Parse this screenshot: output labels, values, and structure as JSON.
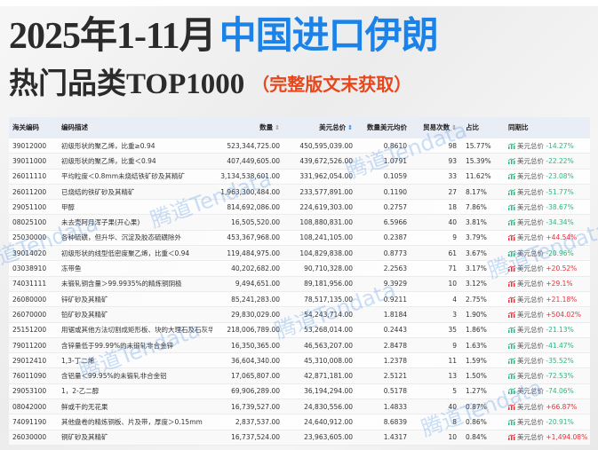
{
  "title": {
    "line1_prefix": "2025年1-11月",
    "line1_highlight": "中国进口伊朗",
    "line2": "热门品类TOP1000",
    "line2_note": "（完整版文末获取）"
  },
  "colors": {
    "accent": "#1a82e8",
    "note": "#e8471c",
    "down": "#2fb67c",
    "up": "#e5323a"
  },
  "watermark": "腾道Tendata",
  "table": {
    "headers": {
      "code": "海关编码",
      "desc": "编码描述",
      "qty": "数量",
      "usd": "美元总价",
      "unit": "数量美元均价",
      "count": "贸易次数",
      "share": "占比",
      "yoy": "同期比"
    },
    "yoy_label": "美元总价",
    "rows": [
      {
        "code": "39012000",
        "desc": "初级形状的聚乙烯，比重≥0.94",
        "qty": "523,344,725.00",
        "usd": "450,595,039.00",
        "unit": "0.8610",
        "count": "98",
        "share": "15.77%",
        "yoy": "-14.27%",
        "dir": "down"
      },
      {
        "code": "39011000",
        "desc": "初级形状的聚乙烯，比重＜0.94",
        "qty": "407,449,605.00",
        "usd": "439,672,526.00",
        "unit": "1.0791",
        "count": "93",
        "share": "15.39%",
        "yoy": "-22.22%",
        "dir": "down"
      },
      {
        "code": "26011110",
        "desc": "平均粒度＜0.8mm未烧结铁矿砂及其精矿",
        "qty": "3,134,538,601.00",
        "usd": "331,962,054.00",
        "unit": "0.1059",
        "count": "33",
        "share": "11.62%",
        "yoy": "-23.08%",
        "dir": "down"
      },
      {
        "code": "26011200",
        "desc": "已烧结的铁矿砂及其精矿",
        "qty": "1,963,300,484.00",
        "usd": "233,577,891.00",
        "unit": "0.1190",
        "count": "27",
        "share": "8.17%",
        "yoy": "-51.77%",
        "dir": "down"
      },
      {
        "code": "29051100",
        "desc": "甲醇",
        "qty": "814,692,086.00",
        "usd": "224,619,303.00",
        "unit": "0.2757",
        "count": "18",
        "share": "7.86%",
        "yoy": "-38.67%",
        "dir": "down"
      },
      {
        "code": "08025100",
        "desc": "未去壳阿月浑子果(开心果)",
        "qty": "16,505,520.00",
        "usd": "108,880,831.00",
        "unit": "6.5966",
        "count": "40",
        "share": "3.81%",
        "yoy": "-34.34%",
        "dir": "down"
      },
      {
        "code": "25030000",
        "desc": "各种硫磺，但升华、沉淀及胶态硫磺除外",
        "qty": "453,367,968.00",
        "usd": "108,241,105.00",
        "unit": "0.2387",
        "count": "9",
        "share": "3.79%",
        "yoy": "+44.54%",
        "dir": "up"
      },
      {
        "code": "39014020",
        "desc": "初级形状的线型低密度聚乙烯，比重＜0.94",
        "qty": "119,484,975.00",
        "usd": "104,829,838.00",
        "unit": "0.8773",
        "count": "61",
        "share": "3.67%",
        "yoy": "-20.96%",
        "dir": "down"
      },
      {
        "code": "03038910",
        "desc": "冻带鱼",
        "qty": "40,202,682.00",
        "usd": "90,710,328.00",
        "unit": "2.2563",
        "count": "71",
        "share": "3.17%",
        "yoy": "+20.52%",
        "dir": "up"
      },
      {
        "code": "74031111",
        "desc": "未锻轧铜含量＞99.9935%的精炼铜阴极",
        "qty": "9,494,651.00",
        "usd": "89,181,956.00",
        "unit": "9.3929",
        "count": "10",
        "share": "3.12%",
        "yoy": "+29.1%",
        "dir": "up"
      },
      {
        "code": "26080000",
        "desc": "锌矿砂及其精矿",
        "qty": "85,241,283.00",
        "usd": "78,517,135.00",
        "unit": "0.9211",
        "count": "4",
        "share": "2.75%",
        "yoy": "+21.18%",
        "dir": "up"
      },
      {
        "code": "26070000",
        "desc": "铅矿砂及其精矿",
        "qty": "29,830,029.00",
        "usd": "54,243,714.00",
        "unit": "1.8184",
        "count": "3",
        "share": "1.90%",
        "yoy": "+504.02%",
        "dir": "up"
      },
      {
        "code": "25151200",
        "desc": "用锯或其他方法切割成矩形板、块的大理石及石灰华",
        "qty": "218,006,789.00",
        "usd": "53,268,014.00",
        "unit": "0.2443",
        "count": "35",
        "share": "1.86%",
        "yoy": "-21.13%",
        "dir": "down"
      },
      {
        "code": "79011200",
        "desc": "含锌量低于99.99%的未锻轧非合金锌",
        "qty": "16,350,365.00",
        "usd": "46,563,207.00",
        "unit": "2.8478",
        "count": "9",
        "share": "1.63%",
        "yoy": "-41.47%",
        "dir": "down"
      },
      {
        "code": "29012410",
        "desc": "1,3-丁二烯",
        "qty": "36,604,340.00",
        "usd": "45,310,008.00",
        "unit": "1.2378",
        "count": "11",
        "share": "1.59%",
        "yoy": "-35.52%",
        "dir": "down"
      },
      {
        "code": "76011090",
        "desc": "含铝量＜99.95%的未锻轧非合金铝",
        "qty": "17,065,807.00",
        "usd": "42,871,181.00",
        "unit": "2.5121",
        "count": "13",
        "share": "1.50%",
        "yoy": "-72.53%",
        "dir": "down"
      },
      {
        "code": "29053100",
        "desc": "1，2-乙二醇",
        "qty": "69,906,289.00",
        "usd": "36,194,294.00",
        "unit": "0.5178",
        "count": "5",
        "share": "1.27%",
        "yoy": "-74.06%",
        "dir": "down"
      },
      {
        "code": "08042000",
        "desc": "鲜或干的无花果",
        "qty": "16,739,527.00",
        "usd": "24,830,556.00",
        "unit": "1.4833",
        "count": "40",
        "share": "0.87%",
        "yoy": "+66.87%",
        "dir": "up"
      },
      {
        "code": "74091190",
        "desc": "其他盘卷的精炼铜板、片及带，厚度＞0.15mm",
        "qty": "2,837,537.00",
        "usd": "24,640,912.00",
        "unit": "8.6839",
        "count": "8",
        "share": "0.86%",
        "yoy": "-20.91%",
        "dir": "down"
      },
      {
        "code": "26030000",
        "desc": "铜矿砂及其精矿",
        "qty": "16,737,524.00",
        "usd": "23,963,605.00",
        "unit": "1.4317",
        "count": "10",
        "share": "0.84%",
        "yoy": "+1,494.08%",
        "dir": "up"
      }
    ]
  }
}
